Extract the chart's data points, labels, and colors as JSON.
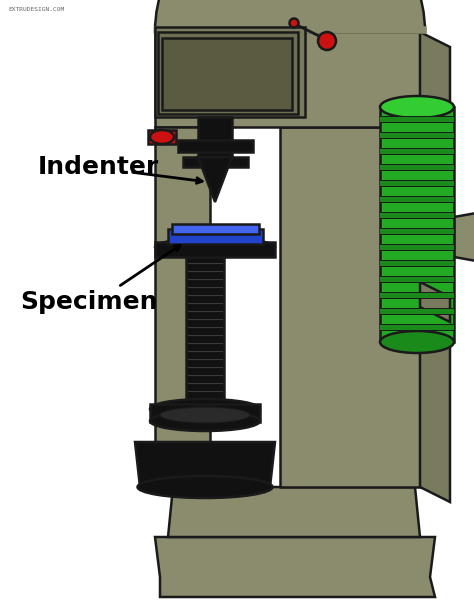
{
  "bg_color": "#ffffff",
  "mc": "#8B8C6E",
  "mc2": "#7a7b5e",
  "me": "#1a1a1a",
  "blk": "#111111",
  "grn": "#22aa22",
  "grn2": "#1a8a1a",
  "grn3": "#33cc33",
  "blu": "#2244cc",
  "blu2": "#4466ee",
  "red": "#cc1111",
  "label_indenter": "Indenter",
  "label_specimen": "Specimen",
  "watermark": "EXTRUDESIGN.COM",
  "label_fontsize": 18
}
